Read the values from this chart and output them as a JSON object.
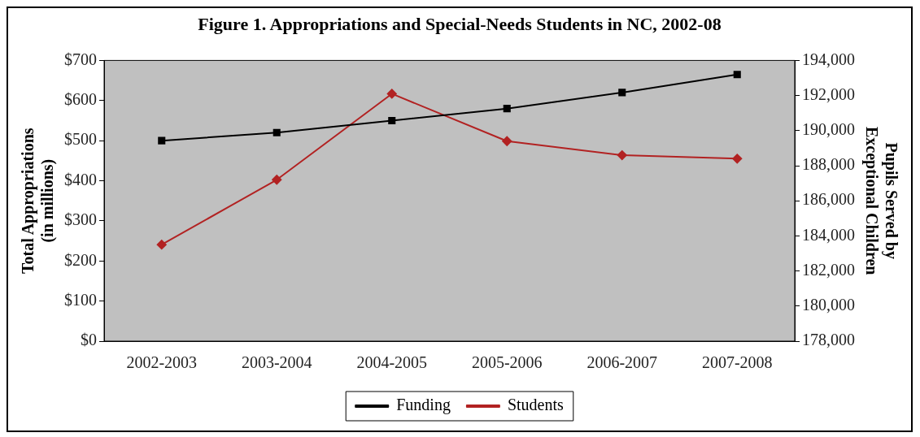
{
  "chart_data": {
    "type": "line",
    "title": "Figure 1. Appropriations and Special-Needs Students in NC, 2002-08",
    "ylabel": "Total Appropriations\n(in millions)",
    "y2label": "Pupils Served by\nExceptional Children",
    "categories": [
      "2002-2003",
      "2003-2004",
      "2004-2005",
      "2005-2006",
      "2006-2007",
      "2007-2008"
    ],
    "series": [
      {
        "name": "Funding",
        "color": "#000000",
        "values": [
          500,
          520,
          550,
          580,
          620,
          665
        ],
        "marker": "square"
      },
      {
        "name": "Students",
        "color": "#b22222",
        "values": [
          183500,
          187200,
          192100,
          189400,
          188600,
          188400
        ],
        "axis": "y2",
        "marker": "diamond"
      }
    ],
    "ylim": [
      0,
      700
    ],
    "yticks": [
      {
        "value": 0,
        "label": "$0"
      },
      {
        "value": 100,
        "label": "$100"
      },
      {
        "value": 200,
        "label": "$200"
      },
      {
        "value": 300,
        "label": "$300"
      },
      {
        "value": 400,
        "label": "$400"
      },
      {
        "value": 500,
        "label": "$500"
      },
      {
        "value": 600,
        "label": "$600"
      },
      {
        "value": 700,
        "label": "$700"
      }
    ],
    "y2lim": [
      178000,
      194000
    ],
    "y2ticks": [
      {
        "value": 178000,
        "label": "178,000"
      },
      {
        "value": 180000,
        "label": "180,000"
      },
      {
        "value": 182000,
        "label": "182,000"
      },
      {
        "value": 184000,
        "label": "184,000"
      },
      {
        "value": 186000,
        "label": "186,000"
      },
      {
        "value": 188000,
        "label": "188,000"
      },
      {
        "value": 190000,
        "label": "190,000"
      },
      {
        "value": 192000,
        "label": "192,000"
      },
      {
        "value": 194000,
        "label": "194,000"
      }
    ],
    "grid": false,
    "legend": "bottom",
    "line_style": "solid"
  }
}
